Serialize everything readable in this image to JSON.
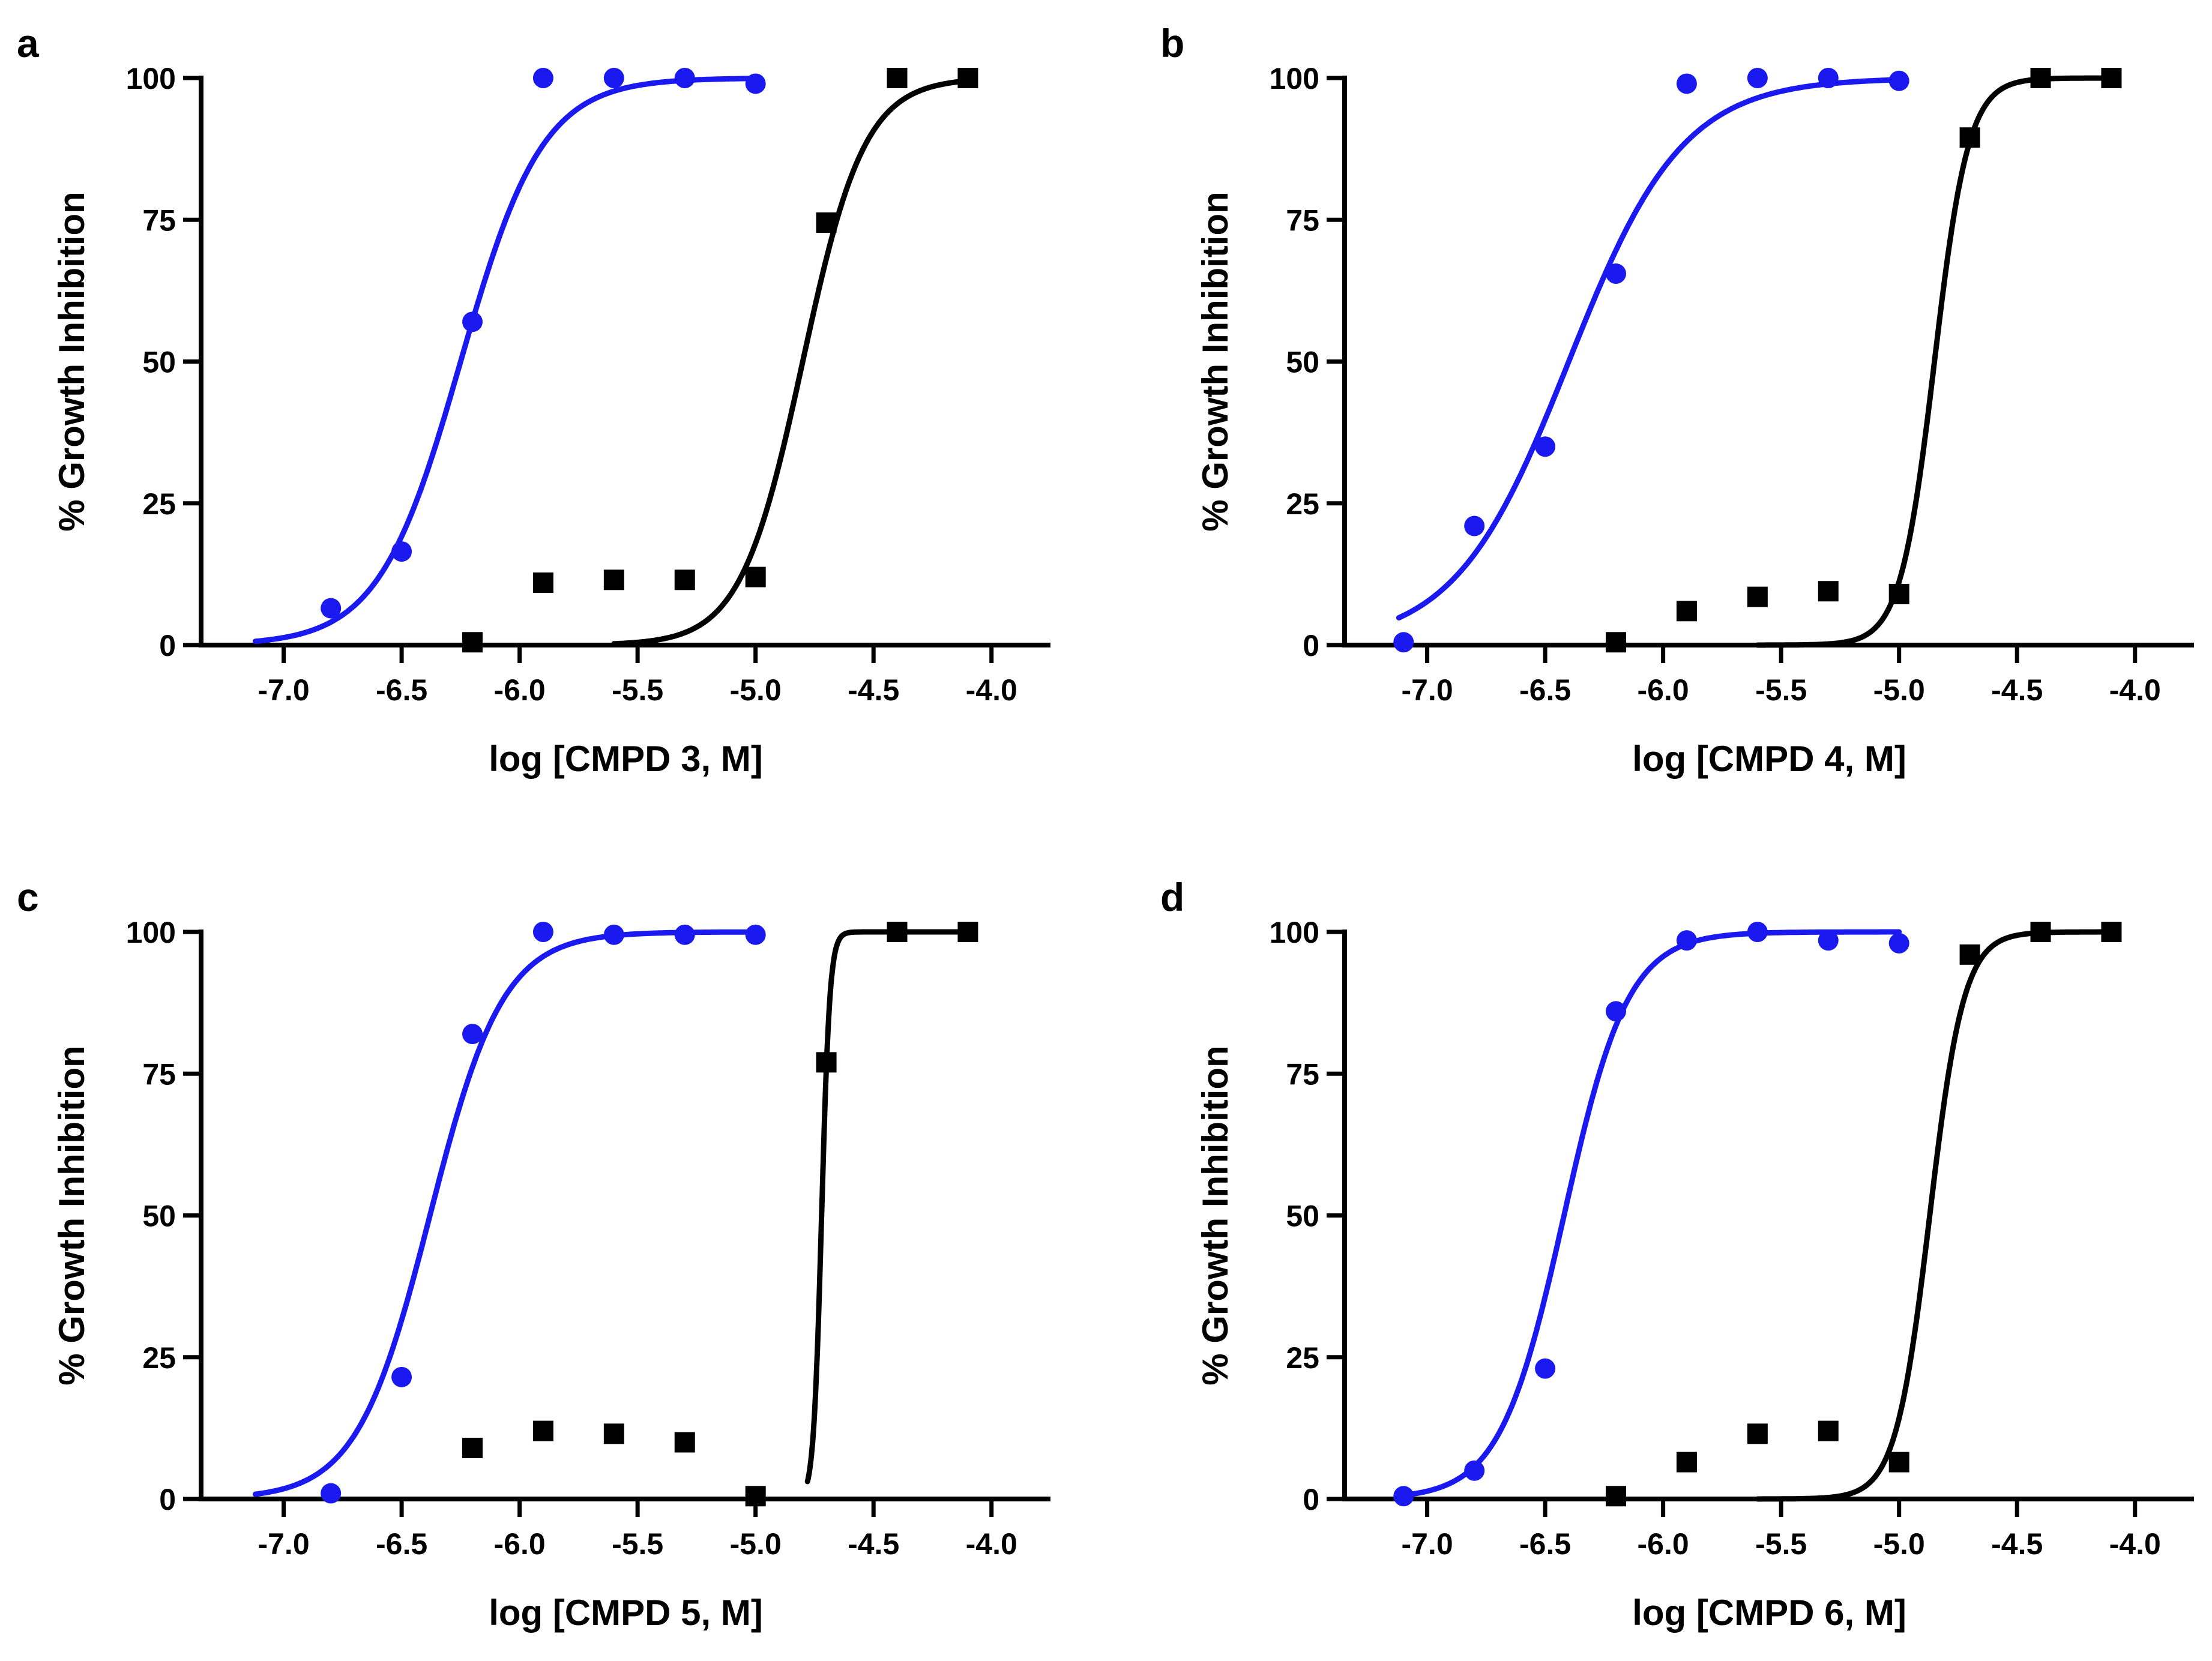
{
  "figure": {
    "colors": {
      "blue_series": "#1a1af0",
      "black_series": "#000000",
      "axis": "#000000"
    }
  },
  "chart_data": [
    {
      "type": "scatter",
      "panel_label": "a",
      "xlabel": "log [CMPD 3, M]",
      "ylabel": "% Growth Inhibition",
      "xlim": [
        -7.35,
        -3.75
      ],
      "ylim": [
        0,
        100
      ],
      "xticks": [
        "-7.0",
        "-6.5",
        "-6.0",
        "-5.5",
        "-5.0",
        "-4.5",
        "-4.0"
      ],
      "xtick_values": [
        -7.0,
        -6.5,
        -6.0,
        -5.5,
        -5.0,
        -4.5,
        -4.0
      ],
      "yticks": [
        "0",
        "25",
        "50",
        "75",
        "100"
      ],
      "ytick_values": [
        0,
        25,
        50,
        75,
        100
      ],
      "series": [
        {
          "name": "blue",
          "color": "#1a1af0",
          "marker": "circle",
          "x": [
            -6.8,
            -6.5,
            -6.2,
            -5.9,
            -5.6,
            -5.3,
            -5.0
          ],
          "y": [
            6.5,
            16.5,
            57,
            100,
            100,
            100,
            99
          ],
          "fit": {
            "bottom": 0,
            "top": 100,
            "logEC50": -6.25,
            "hill": 2.5,
            "x_range": [
              -7.12,
              -5.0
            ]
          }
        },
        {
          "name": "black",
          "color": "#000000",
          "marker": "square",
          "x": [
            -6.2,
            -5.9,
            -5.6,
            -5.3,
            -5.0,
            -4.7,
            -4.4,
            -4.1
          ],
          "y": [
            0.5,
            11,
            11.5,
            11.5,
            12,
            74.5,
            100,
            100
          ],
          "fit": {
            "bottom": 0,
            "top": 100,
            "logEC50": -4.8,
            "hill": 3.3,
            "x_range": [
              -5.6,
              -4.1
            ]
          }
        }
      ]
    },
    {
      "type": "scatter",
      "panel_label": "b",
      "xlabel": "log [CMPD 4, M]",
      "ylabel": "% Growth Inhibition",
      "xlim": [
        -7.35,
        -3.75
      ],
      "ylim": [
        0,
        100
      ],
      "xticks": [
        "-7.0",
        "-6.5",
        "-6.0",
        "-5.5",
        "-5.0",
        "-4.5",
        "-4.0"
      ],
      "xtick_values": [
        -7.0,
        -6.5,
        -6.0,
        -5.5,
        -5.0,
        -4.5,
        -4.0
      ],
      "yticks": [
        "0",
        "25",
        "50",
        "75",
        "100"
      ],
      "ytick_values": [
        0,
        25,
        50,
        75,
        100
      ],
      "series": [
        {
          "name": "blue",
          "color": "#1a1af0",
          "marker": "circle",
          "x": [
            -7.1,
            -6.8,
            -6.5,
            -6.2,
            -5.9,
            -5.6,
            -5.3,
            -5.0
          ],
          "y": [
            0.5,
            21,
            35,
            65.5,
            99,
            100,
            100,
            99.5
          ],
          "fit": {
            "bottom": 0,
            "top": 100,
            "logEC50": -6.4,
            "hill": 1.8,
            "x_range": [
              -7.12,
              -5.0
            ]
          }
        },
        {
          "name": "black",
          "color": "#000000",
          "marker": "square",
          "x": [
            -6.2,
            -5.9,
            -5.6,
            -5.3,
            -5.0,
            -4.7,
            -4.4,
            -4.1
          ],
          "y": [
            0.5,
            6,
            8.5,
            9.5,
            9,
            89.5,
            100,
            100
          ],
          "fit": {
            "bottom": 0,
            "top": 100,
            "logEC50": -4.85,
            "hill": 6,
            "x_range": [
              -5.6,
              -4.1
            ]
          }
        }
      ]
    },
    {
      "type": "scatter",
      "panel_label": "c",
      "xlabel": "log [CMPD 5, M]",
      "ylabel": "% Growth Inhibition",
      "xlim": [
        -7.35,
        -3.75
      ],
      "ylim": [
        0,
        100
      ],
      "xticks": [
        "-7.0",
        "-6.5",
        "-6.0",
        "-5.5",
        "-5.0",
        "-4.5",
        "-4.0"
      ],
      "xtick_values": [
        -7.0,
        -6.5,
        -6.0,
        -5.5,
        -5.0,
        -4.5,
        -4.0
      ],
      "yticks": [
        "0",
        "25",
        "50",
        "75",
        "100"
      ],
      "ytick_values": [
        0,
        25,
        50,
        75,
        100
      ],
      "series": [
        {
          "name": "blue",
          "color": "#1a1af0",
          "marker": "circle",
          "x": [
            -6.8,
            -6.5,
            -6.2,
            -5.9,
            -5.6,
            -5.3,
            -5.0
          ],
          "y": [
            1,
            21.5,
            82,
            100,
            99.5,
            99.5,
            99.5
          ],
          "fit": {
            "bottom": 0,
            "top": 100,
            "logEC50": -6.38,
            "hill": 2.8,
            "x_range": [
              -7.12,
              -5.0
            ]
          }
        },
        {
          "name": "black",
          "color": "#000000",
          "marker": "square",
          "x": [
            -6.2,
            -5.9,
            -5.6,
            -5.3,
            -5.0,
            -4.7,
            -4.4,
            -4.1
          ],
          "y": [
            9,
            12,
            11.5,
            10,
            0.5,
            77,
            100,
            100
          ],
          "fit": {
            "bottom": 0,
            "top": 100,
            "logEC50": -4.72,
            "hill": 25,
            "x_range": [
              -4.78,
              -4.1
            ]
          }
        }
      ]
    },
    {
      "type": "scatter",
      "panel_label": "d",
      "xlabel": "log [CMPD 6, M]",
      "ylabel": "% Growth Inhibition",
      "xlim": [
        -7.35,
        -3.75
      ],
      "ylim": [
        0,
        100
      ],
      "xticks": [
        "-7.0",
        "-6.5",
        "-6.0",
        "-5.5",
        "-5.0",
        "-4.5",
        "-4.0"
      ],
      "xtick_values": [
        -7.0,
        -6.5,
        -6.0,
        -5.5,
        -5.0,
        -4.5,
        -4.0
      ],
      "yticks": [
        "0",
        "25",
        "50",
        "75",
        "100"
      ],
      "ytick_values": [
        0,
        25,
        50,
        75,
        100
      ],
      "series": [
        {
          "name": "blue",
          "color": "#1a1af0",
          "marker": "circle",
          "x": [
            -7.1,
            -6.8,
            -6.5,
            -6.2,
            -5.9,
            -5.6,
            -5.3,
            -5.0
          ],
          "y": [
            0.5,
            5,
            23,
            86,
            98.5,
            100,
            98.5,
            98
          ],
          "fit": {
            "bottom": 0,
            "top": 100,
            "logEC50": -6.42,
            "hill": 3.2,
            "x_range": [
              -7.12,
              -5.0
            ]
          }
        },
        {
          "name": "black",
          "color": "#000000",
          "marker": "square",
          "x": [
            -6.2,
            -5.9,
            -5.6,
            -5.3,
            -5.0,
            -4.7,
            -4.4,
            -4.1
          ],
          "y": [
            0.5,
            6.5,
            11.5,
            12,
            6.5,
            96,
            100,
            100
          ],
          "fit": {
            "bottom": 0,
            "top": 100,
            "logEC50": -4.87,
            "hill": 6,
            "x_range": [
              -5.6,
              -4.1
            ]
          }
        }
      ]
    }
  ]
}
